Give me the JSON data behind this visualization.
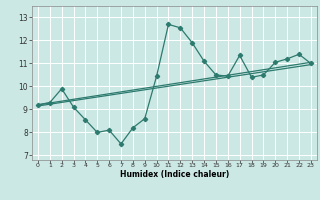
{
  "title": "",
  "xlabel": "Humidex (Indice chaleur)",
  "bg_color": "#cce8e4",
  "line_color": "#2d7a6e",
  "grid_color": "#ffffff",
  "xlim": [
    -0.5,
    23.5
  ],
  "ylim": [
    6.8,
    13.5
  ],
  "yticks": [
    7,
    8,
    9,
    10,
    11,
    12,
    13
  ],
  "xticks": [
    0,
    1,
    2,
    3,
    4,
    5,
    6,
    7,
    8,
    9,
    10,
    11,
    12,
    13,
    14,
    15,
    16,
    17,
    18,
    19,
    20,
    21,
    22,
    23
  ],
  "line1_x": [
    0,
    1,
    2,
    3,
    4,
    5,
    6,
    7,
    8,
    9,
    10,
    11,
    12,
    13,
    14,
    15,
    16,
    17,
    18,
    19,
    20,
    21,
    22,
    23
  ],
  "line1_y": [
    9.2,
    9.3,
    9.9,
    9.1,
    8.55,
    8.0,
    8.1,
    7.5,
    8.2,
    8.6,
    10.45,
    12.7,
    12.55,
    11.9,
    11.1,
    10.5,
    10.45,
    11.35,
    10.4,
    10.5,
    11.05,
    11.2,
    11.4,
    11.0
  ],
  "line2_x": [
    0,
    23
  ],
  "line2_y": [
    9.2,
    11.05
  ],
  "line3_x": [
    0,
    23
  ],
  "line3_y": [
    9.15,
    10.95
  ]
}
